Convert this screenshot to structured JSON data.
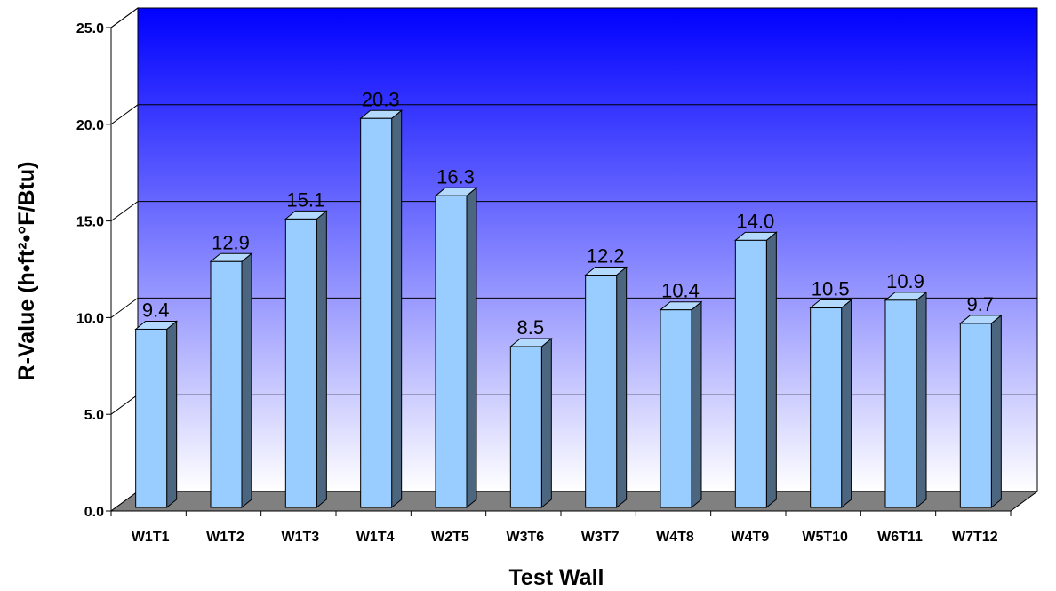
{
  "chart_data": {
    "type": "bar",
    "categories": [
      "W1T1",
      "W1T2",
      "W1T3",
      "W1T4",
      "W2T5",
      "W3T6",
      "W3T7",
      "W4T8",
      "W4T9",
      "W5T10",
      "W6T11",
      "W7T12"
    ],
    "values": [
      9.4,
      12.9,
      15.1,
      20.3,
      16.3,
      8.5,
      12.2,
      10.4,
      14.0,
      10.5,
      10.9,
      9.7
    ],
    "value_labels": [
      "9.4",
      "12.9",
      "15.1",
      "20.3",
      "16.3",
      "8.5",
      "12.2",
      "10.4",
      "14.0",
      "10.5",
      "10.9",
      "9.7"
    ],
    "xlabel": "Test Wall",
    "ylabel": "R-Value (h•ft²•°F/Btu)",
    "ylim": [
      0,
      25
    ],
    "yticks": [
      "0.0",
      "5.0",
      "10.0",
      "15.0",
      "20.0",
      "25.0"
    ],
    "grid": true,
    "legend": "none",
    "colors": {
      "bar_front": "#99ccff",
      "bar_side": "#4d6680",
      "bar_top": "#b3d9ff",
      "floor": "#808080",
      "wall_top": "#0000ff",
      "wall_bottom": "#ffffff"
    }
  }
}
